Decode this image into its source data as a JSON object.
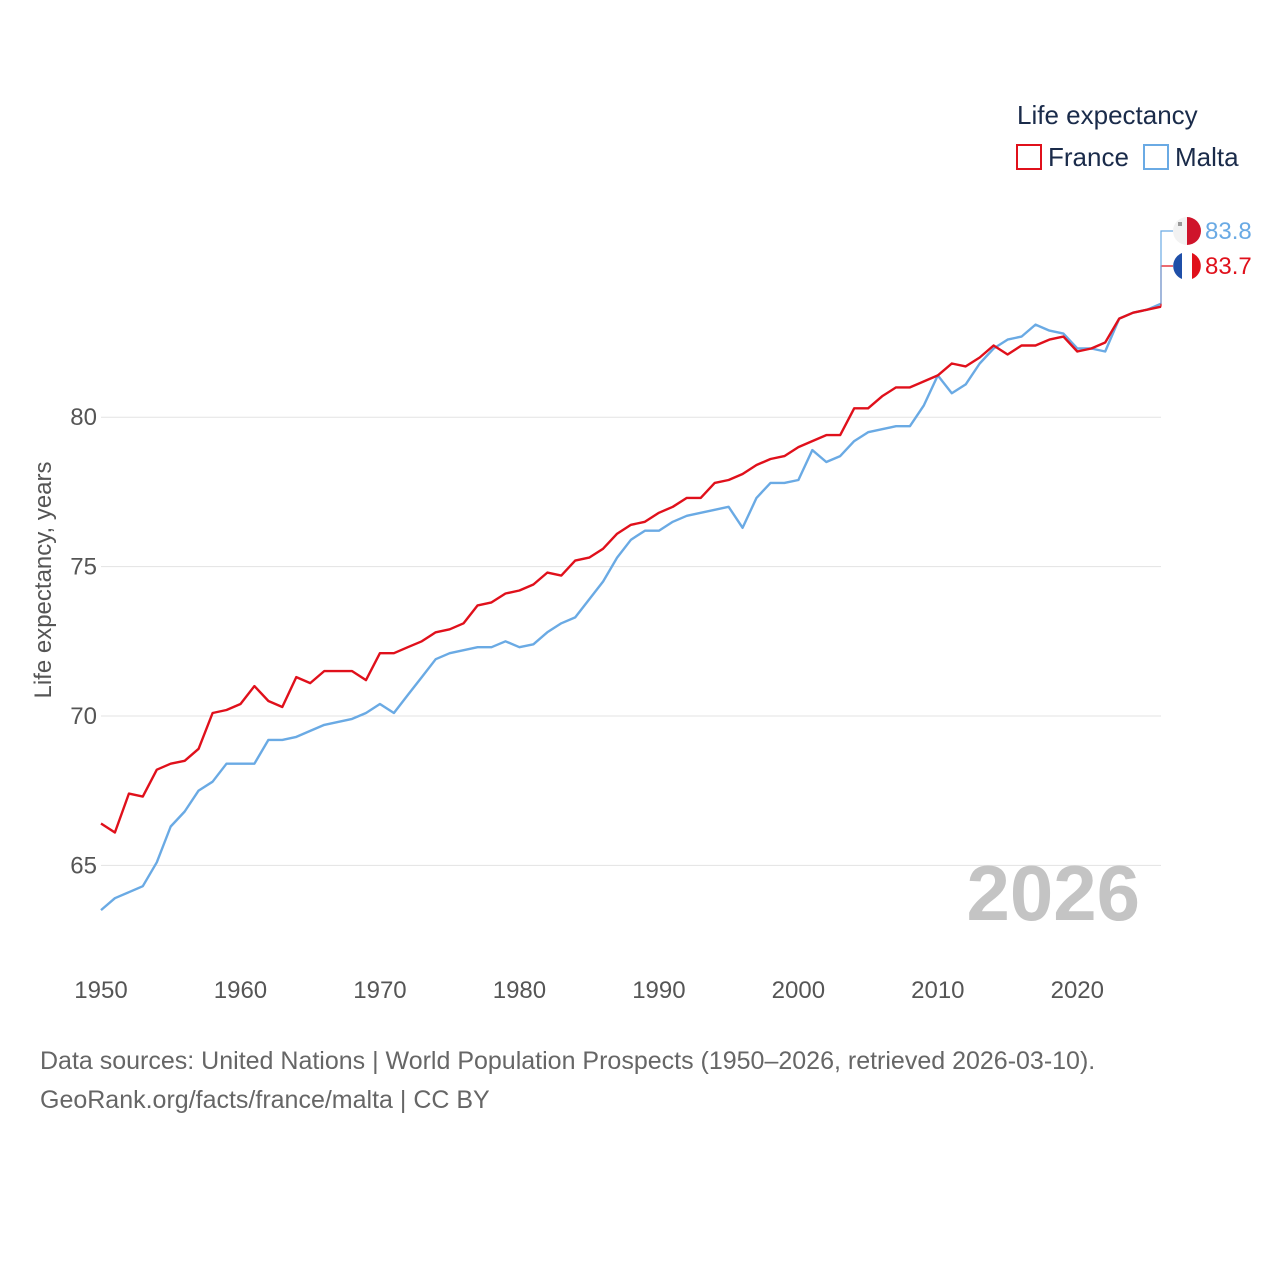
{
  "chart_data": {
    "type": "line",
    "ylabel": "Life expectancy, years",
    "xlabel": "",
    "xlim": [
      1950,
      2026
    ],
    "ylim": [
      62.5,
      86.1
    ],
    "x_ticks": [
      1950,
      1960,
      1970,
      1980,
      1990,
      2000,
      2010,
      2020
    ],
    "y_ticks": [
      65,
      70,
      75,
      80
    ],
    "legend_title": "Life expectancy",
    "current_year": "2026",
    "years": [
      1950,
      1951,
      1952,
      1953,
      1954,
      1955,
      1956,
      1957,
      1958,
      1959,
      1960,
      1961,
      1962,
      1963,
      1964,
      1965,
      1966,
      1967,
      1968,
      1969,
      1970,
      1971,
      1972,
      1973,
      1974,
      1975,
      1976,
      1977,
      1978,
      1979,
      1980,
      1981,
      1982,
      1983,
      1984,
      1985,
      1986,
      1987,
      1988,
      1989,
      1990,
      1991,
      1992,
      1993,
      1994,
      1995,
      1996,
      1997,
      1998,
      1999,
      2000,
      2001,
      2002,
      2003,
      2004,
      2005,
      2006,
      2007,
      2008,
      2009,
      2010,
      2011,
      2012,
      2013,
      2014,
      2015,
      2016,
      2017,
      2018,
      2019,
      2020,
      2021,
      2022,
      2023,
      2024,
      2025,
      2026
    ],
    "series": [
      {
        "name": "France",
        "color": "#e0101b",
        "end_label": "83.7",
        "values": [
          66.4,
          66.1,
          67.4,
          67.3,
          68.2,
          68.4,
          68.5,
          68.9,
          70.1,
          70.2,
          70.4,
          71.0,
          70.5,
          70.3,
          71.3,
          71.1,
          71.5,
          71.5,
          71.5,
          71.2,
          72.1,
          72.1,
          72.3,
          72.5,
          72.8,
          72.9,
          73.1,
          73.7,
          73.8,
          74.1,
          74.2,
          74.4,
          74.8,
          74.7,
          75.2,
          75.3,
          75.6,
          76.1,
          76.4,
          76.5,
          76.8,
          77.0,
          77.3,
          77.3,
          77.8,
          77.9,
          78.1,
          78.4,
          78.6,
          78.7,
          79.0,
          79.2,
          79.4,
          79.4,
          80.3,
          80.3,
          80.7,
          81.0,
          81.0,
          81.2,
          81.4,
          81.8,
          81.7,
          82.0,
          82.4,
          82.1,
          82.4,
          82.4,
          82.6,
          82.7,
          82.2,
          82.3,
          82.5,
          83.3,
          83.5,
          83.6,
          83.7
        ]
      },
      {
        "name": "Malta",
        "color": "#6aaae4",
        "end_label": "83.8",
        "values": [
          63.5,
          63.9,
          64.1,
          64.3,
          65.1,
          66.3,
          66.8,
          67.5,
          67.8,
          68.4,
          68.4,
          68.4,
          69.2,
          69.2,
          69.3,
          69.5,
          69.7,
          69.8,
          69.9,
          70.1,
          70.4,
          70.1,
          70.7,
          71.3,
          71.9,
          72.1,
          72.2,
          72.3,
          72.3,
          72.5,
          72.3,
          72.4,
          72.8,
          73.1,
          73.3,
          73.9,
          74.5,
          75.3,
          75.9,
          76.2,
          76.2,
          76.5,
          76.7,
          76.8,
          76.9,
          77.0,
          76.3,
          77.3,
          77.8,
          77.8,
          77.9,
          78.9,
          78.5,
          78.7,
          79.2,
          79.5,
          79.6,
          79.7,
          79.7,
          80.4,
          81.4,
          80.8,
          81.1,
          81.8,
          82.3,
          82.6,
          82.7,
          83.1,
          82.9,
          82.8,
          82.3,
          82.3,
          82.2,
          83.3,
          83.5,
          83.6,
          83.8
        ]
      }
    ]
  },
  "legend": {
    "title": "Life expectancy",
    "items": [
      {
        "label": "France",
        "color": "#e0101b"
      },
      {
        "label": "Malta",
        "color": "#6aaae4"
      }
    ]
  },
  "footer": {
    "source_line": "Data sources: United Nations | World Population Prospects (1950–2026, retrieved 2026-03-10).",
    "credit_line": "GeoRank.org/facts/france/malta | CC BY"
  },
  "colors": {
    "grid": "#e3e3e3",
    "tick_text": "#555555",
    "watermark": "#c4c4c4"
  }
}
